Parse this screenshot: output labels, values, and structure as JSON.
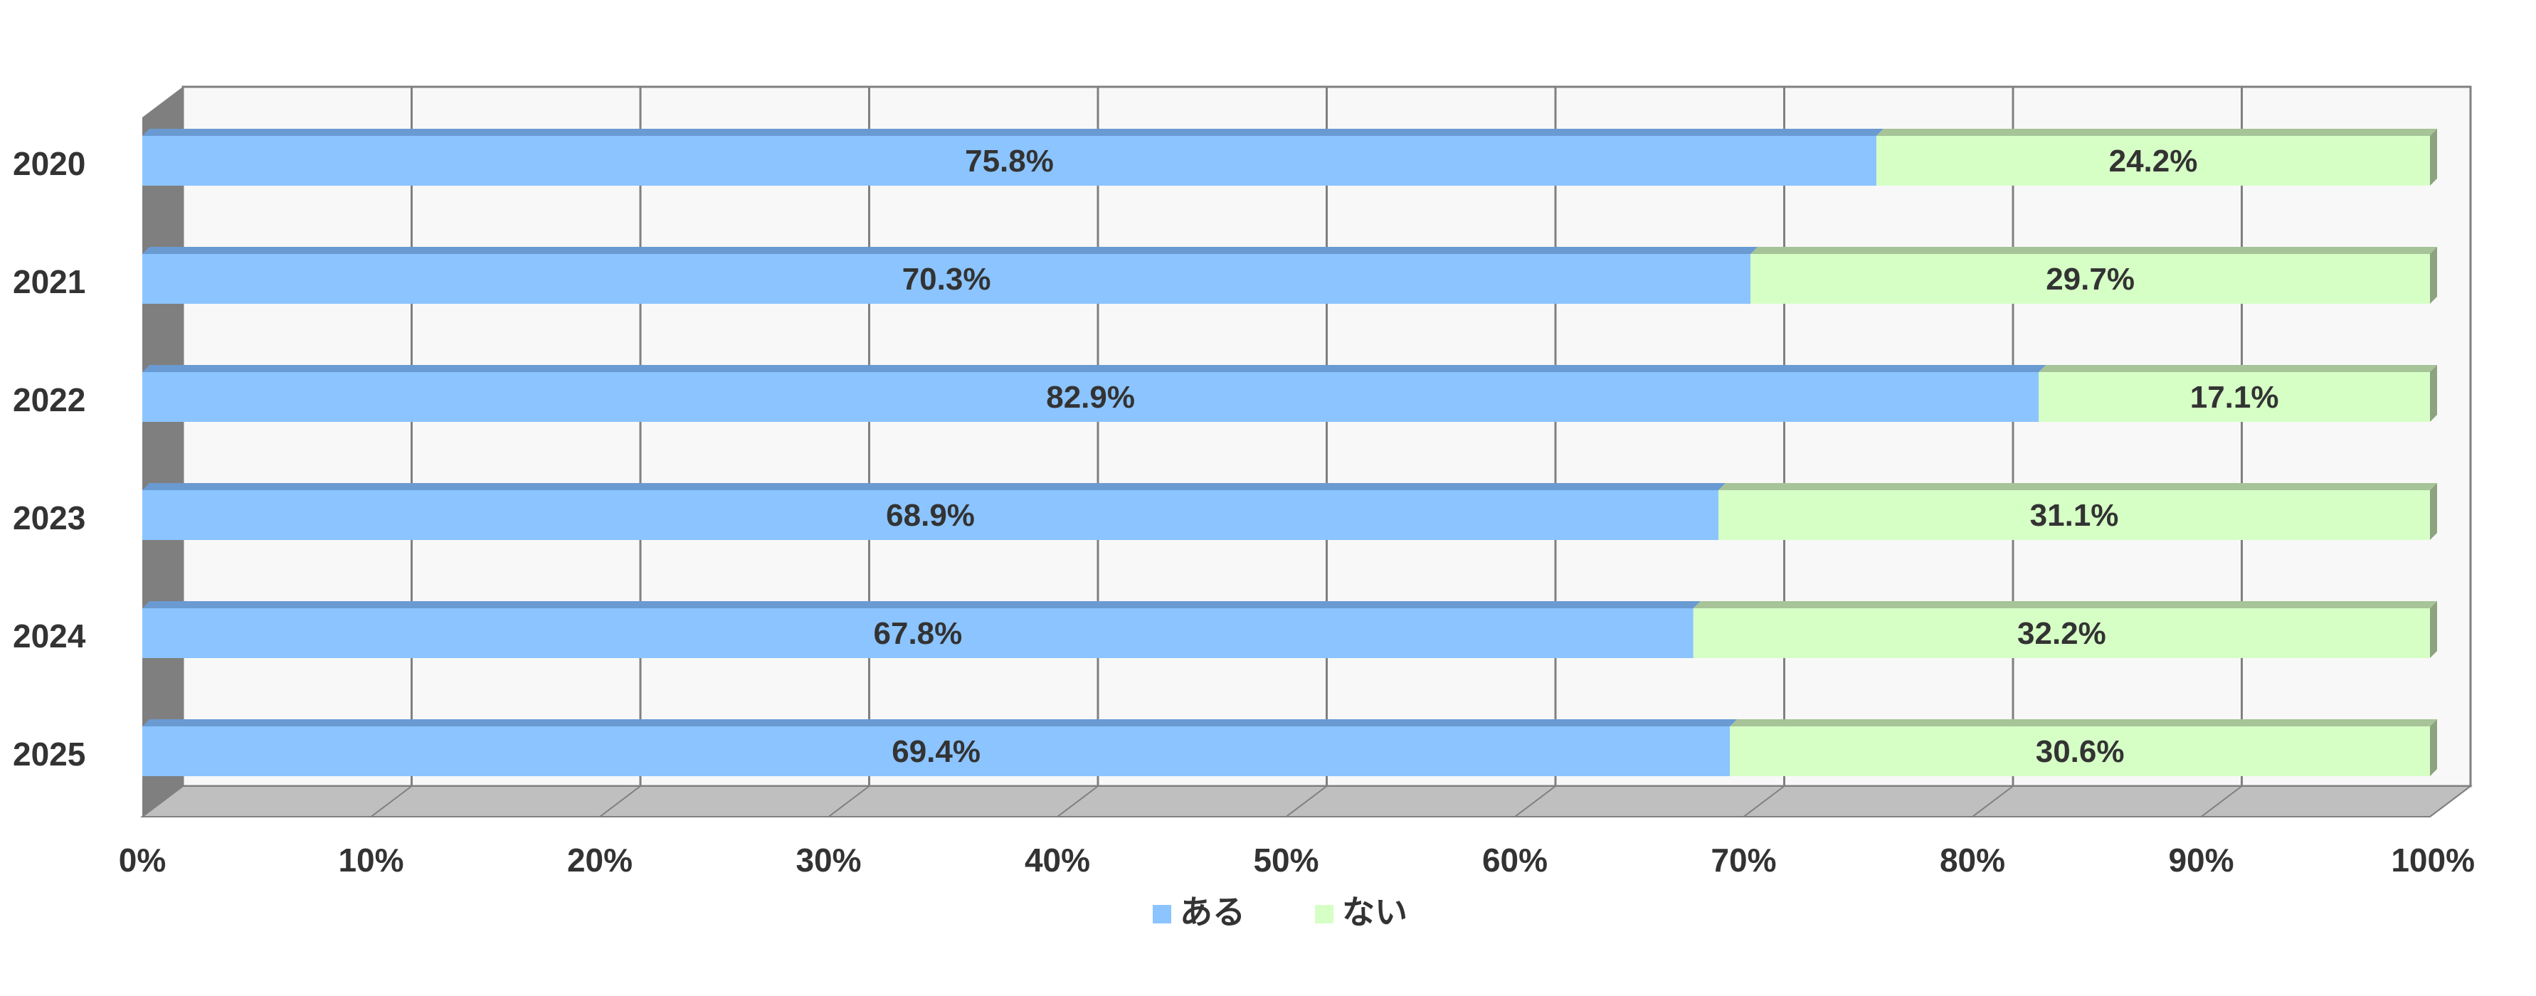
{
  "chart_data": {
    "type": "bar",
    "orientation": "horizontal",
    "stacked": true,
    "percent_stacked": true,
    "three_d": true,
    "categories": [
      "2020",
      "2021",
      "2022",
      "2023",
      "2024",
      "2025"
    ],
    "series": [
      {
        "name": "ある",
        "values": [
          75.8,
          70.3,
          82.9,
          68.9,
          67.8,
          69.4
        ],
        "labels": [
          "75.8%",
          "70.3%",
          "82.9%",
          "68.9%",
          "67.8%",
          "69.4%"
        ],
        "color": "#8BC4FF",
        "top_color": "#6A9AD2"
      },
      {
        "name": "ない",
        "values": [
          24.2,
          29.7,
          17.1,
          31.1,
          32.2,
          30.6
        ],
        "labels": [
          "24.2%",
          "29.7%",
          "17.1%",
          "31.1%",
          "32.2%",
          "30.6%"
        ],
        "color": "#D6FFC6",
        "top_color": "#A6C497",
        "end_color": "#8CA37F"
      }
    ],
    "x_ticks": [
      "0%",
      "10%",
      "20%",
      "30%",
      "40%",
      "50%",
      "60%",
      "70%",
      "80%",
      "90%",
      "100%"
    ],
    "xlim": [
      0,
      100
    ],
    "grid": true,
    "legend_position": "bottom",
    "title": "",
    "xlabel": "",
    "ylabel": "",
    "colors": {
      "plot_background": "#F8F8F8",
      "gridline": "#808080",
      "floor": "#BFBFBF",
      "side_wall": "#7F7F7F",
      "label_text": "#333333"
    }
  }
}
